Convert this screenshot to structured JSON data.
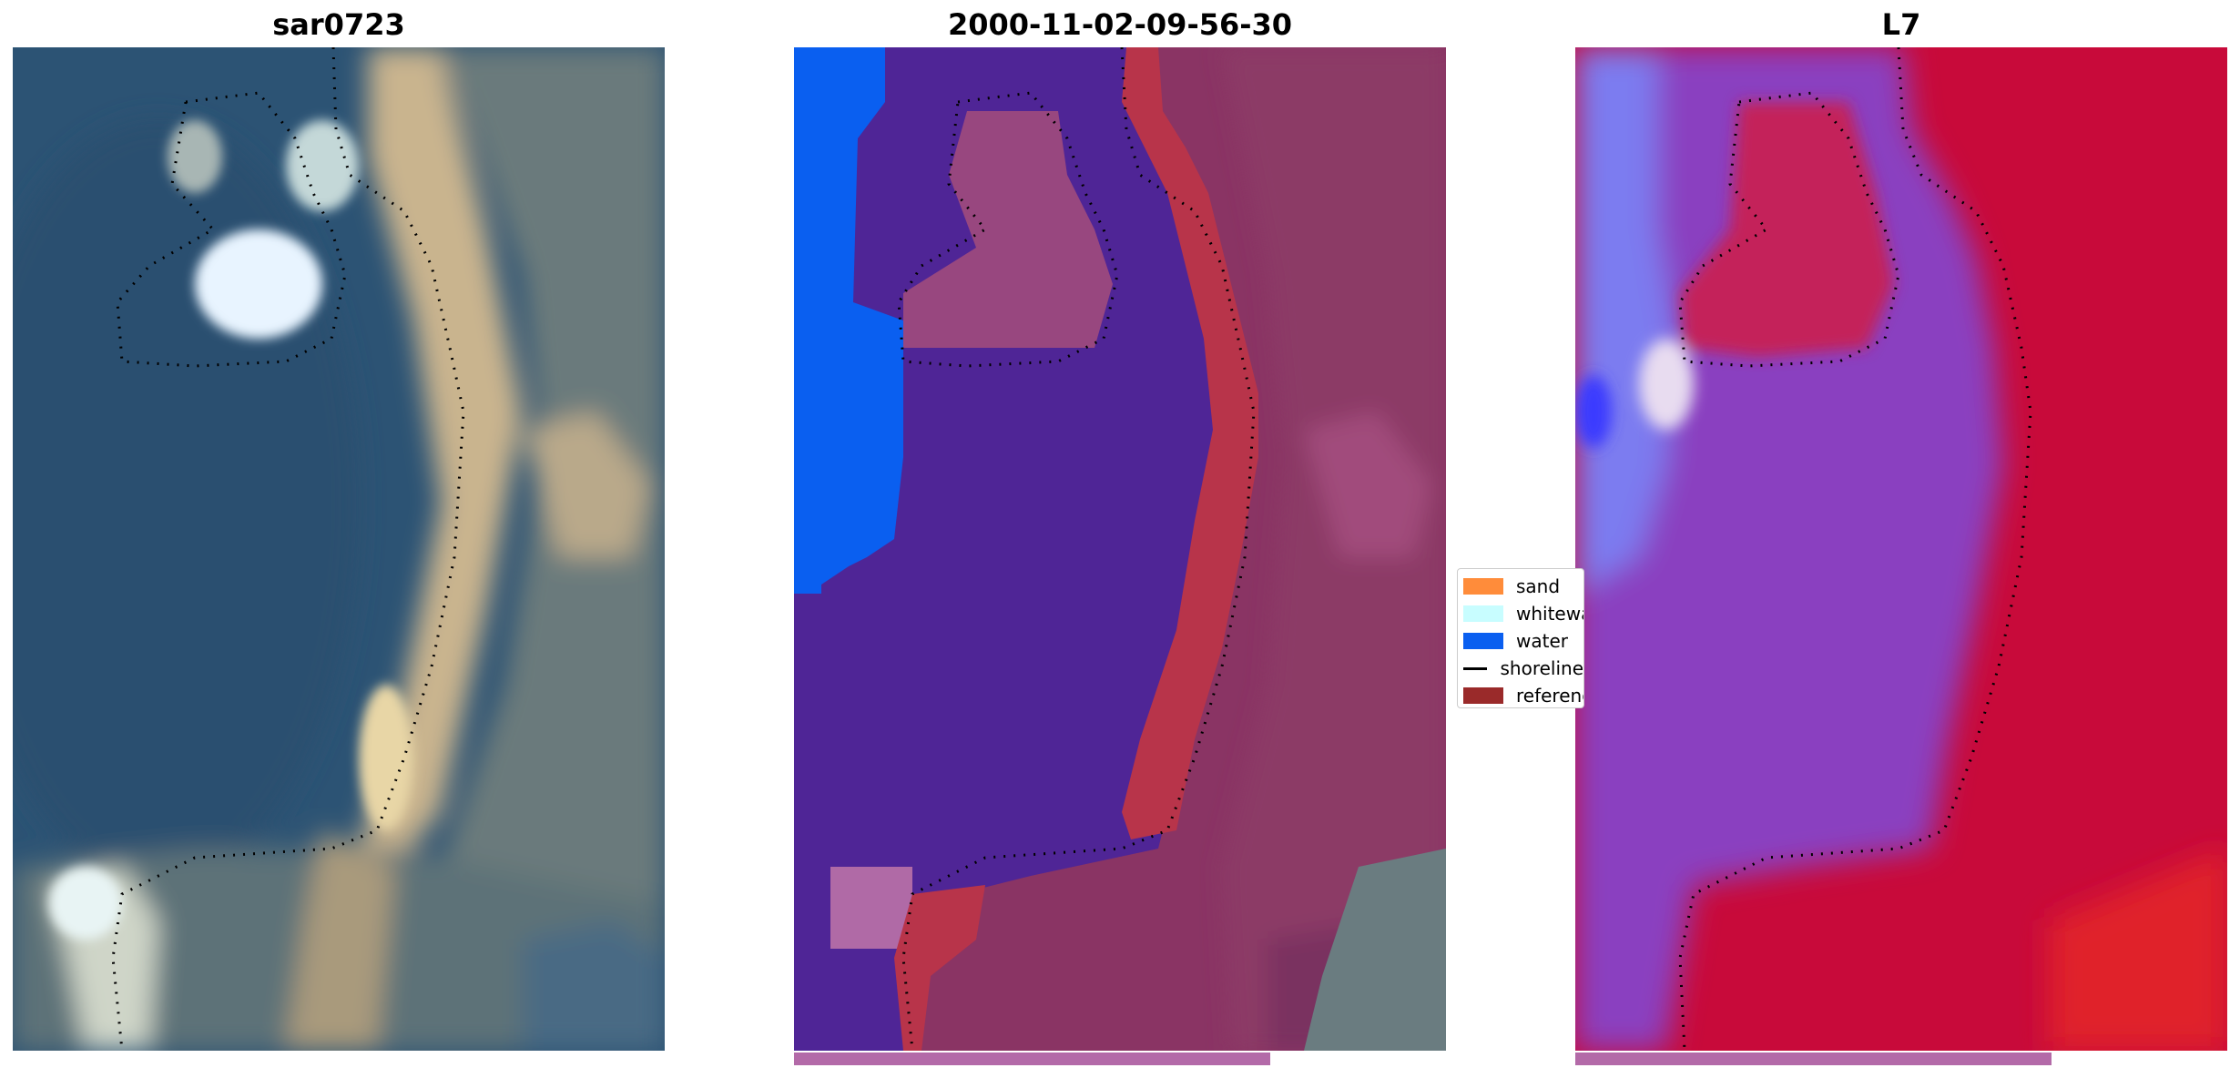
{
  "panels": [
    {
      "title": "sar0723",
      "type": "rgb"
    },
    {
      "title": "2000-11-02-09-56-30",
      "type": "classified"
    },
    {
      "title": "L7",
      "type": "index"
    }
  ],
  "legend": {
    "items": [
      {
        "label": "sand",
        "color": "#ff8c3a",
        "kind": "patch"
      },
      {
        "label": "whitewater",
        "color": "#c8fdff",
        "kind": "patch"
      },
      {
        "label": "water",
        "color": "#0a5ff0",
        "kind": "patch"
      },
      {
        "label": "shoreline",
        "color": "#000000",
        "kind": "line"
      },
      {
        "label": "reference shoreline",
        "color": "#9a2a2a",
        "kind": "patch"
      }
    ]
  },
  "progress": {
    "fraction": 0.73
  },
  "colors": {
    "deep_water": "#2e5878",
    "classified_water_overlay": "#4f2596",
    "open_water": "#0a5ff0",
    "land_overlay": "#8a3060",
    "index_land": "#c80a3a",
    "index_water": "#8a40c0"
  }
}
